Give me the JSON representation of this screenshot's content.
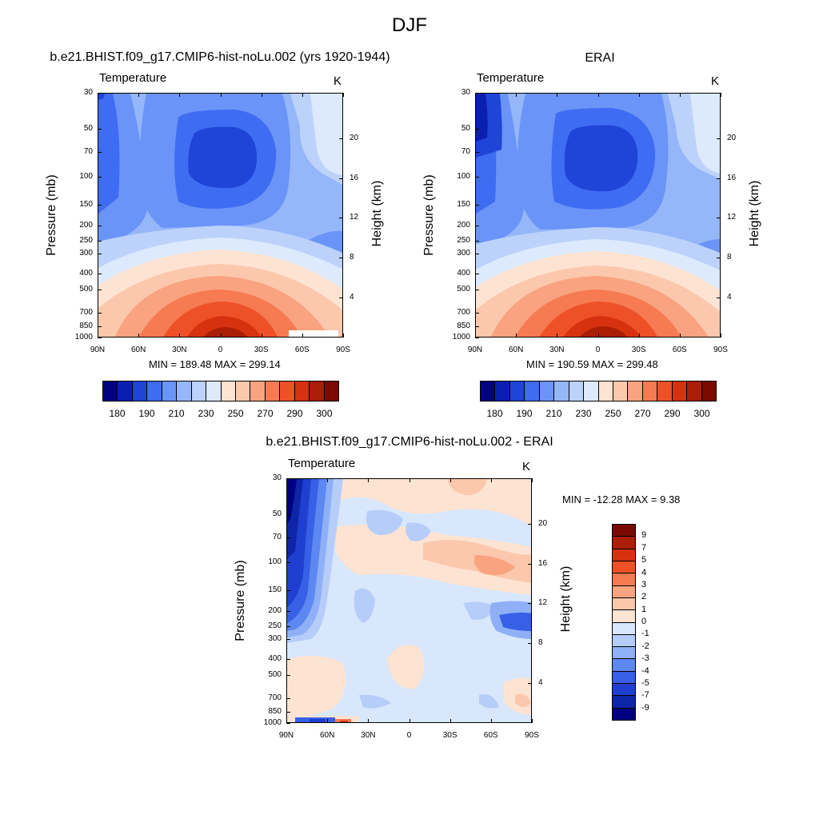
{
  "figure": {
    "title": "DJF"
  },
  "colors": {
    "abs_levels": [
      "#000080",
      "#0a1fb0",
      "#1f44d8",
      "#3e6cf2",
      "#6a94f7",
      "#95b6f9",
      "#bcd2fb",
      "#ddeafd",
      "#fde3d2",
      "#fcc8ad",
      "#faa380",
      "#f67a52",
      "#ee5128",
      "#d6320f",
      "#aa1d06",
      "#7a0a00"
    ],
    "diff_levels": [
      "#7a0a00",
      "#aa1d06",
      "#d6320f",
      "#ee5128",
      "#f67a52",
      "#faa380",
      "#fcc8ad",
      "#fde3d2",
      "#d8e7fc",
      "#b6cdfa",
      "#8fb0f7",
      "#5d87f1",
      "#3760e6",
      "#1f3fd0",
      "#0e25a8",
      "#000080"
    ]
  },
  "chart_data": [
    {
      "type": "contour",
      "title": "b.e21.BHIST.f09_g17.CMIP6-hist-noLu.002 (yrs 1920-1944)",
      "variable": "Temperature",
      "units": "K",
      "ylabel": "Pressure (mb)",
      "ylabel_right": "Height (km)",
      "yticks": [
        "30",
        "50",
        "70",
        "100",
        "150",
        "200",
        "250",
        "300",
        "400",
        "500",
        "700",
        "850",
        "1000"
      ],
      "yticks_right": [
        "20",
        "16",
        "12",
        "8",
        "4"
      ],
      "xticks": [
        "90N",
        "60N",
        "30N",
        "0",
        "30S",
        "60S",
        "90S"
      ],
      "min_max": "MIN = 189.48  MAX = 299.14",
      "min": 189.48,
      "max": 299.14,
      "colorbar_labels": [
        "180",
        "190",
        "210",
        "230",
        "250",
        "270",
        "290",
        "300"
      ]
    },
    {
      "type": "contour",
      "title": "ERAI",
      "variable": "Temperature",
      "units": "K",
      "ylabel": "Pressure (mb)",
      "ylabel_right": "Height (km)",
      "yticks": [
        "30",
        "50",
        "70",
        "100",
        "150",
        "200",
        "250",
        "300",
        "400",
        "500",
        "700",
        "850",
        "1000"
      ],
      "yticks_right": [
        "20",
        "16",
        "12",
        "8",
        "4"
      ],
      "xticks": [
        "90N",
        "60N",
        "30N",
        "0",
        "30S",
        "60S",
        "90S"
      ],
      "min_max": "MIN = 190.59  MAX = 299.48",
      "min": 190.59,
      "max": 299.48,
      "colorbar_labels": [
        "180",
        "190",
        "210",
        "230",
        "250",
        "270",
        "290",
        "300"
      ]
    },
    {
      "type": "contour",
      "title": "b.e21.BHIST.f09_g17.CMIP6-hist-noLu.002 - ERAI",
      "variable": "Temperature",
      "units": "K",
      "ylabel": "Pressure (mb)",
      "ylabel_right": "Height (km)",
      "yticks": [
        "30",
        "50",
        "70",
        "100",
        "150",
        "200",
        "250",
        "300",
        "400",
        "500",
        "700",
        "850",
        "1000"
      ],
      "yticks_right": [
        "20",
        "16",
        "12",
        "8",
        "4"
      ],
      "xticks": [
        "90N",
        "60N",
        "30N",
        "0",
        "30S",
        "60S",
        "90S"
      ],
      "min_max": "MIN = -12.28  MAX =   9.38",
      "min": -12.28,
      "max": 9.38,
      "colorbar_labels": [
        "9",
        "7",
        "5",
        "4",
        "3",
        "2",
        "1",
        "0",
        "-1",
        "-2",
        "-3",
        "-4",
        "-5",
        "-7",
        "-9"
      ]
    }
  ]
}
